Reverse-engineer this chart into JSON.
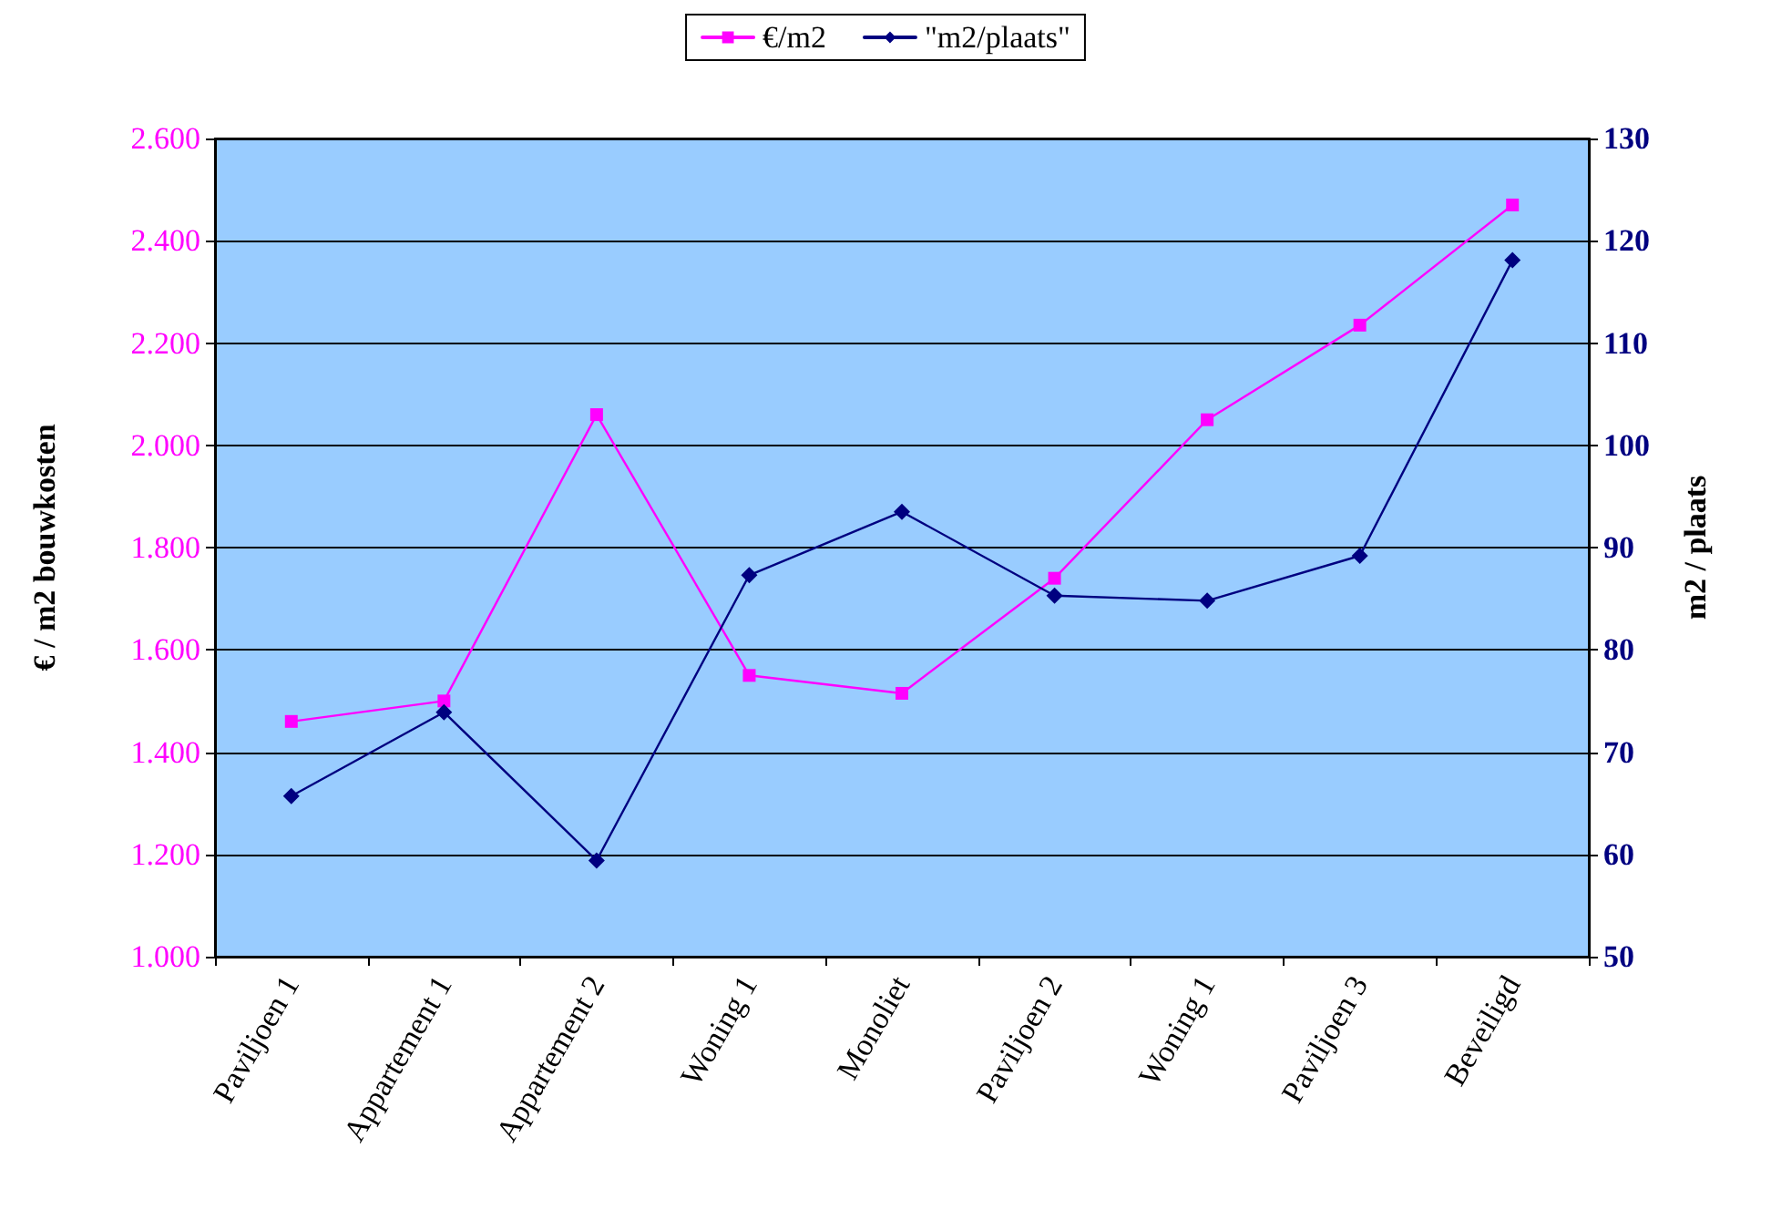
{
  "chart_data": {
    "type": "line",
    "ylabel": "€ / m2 bouwkosten",
    "y2label": "m2 / plaats",
    "categories": [
      "Paviljoen 1",
      "Appartement 1",
      "Appartement 2",
      "Woning 1",
      "Monoliet",
      "Paviljoen 2",
      "Woning 1",
      "Paviljoen 3",
      "Beveiligd"
    ],
    "series": [
      {
        "name": "€/m2",
        "color": "#ff00ff",
        "marker": "square",
        "values": [
          1460,
          1500,
          2060,
          1550,
          1515,
          1740,
          2050,
          2235,
          2470
        ]
      },
      {
        "name": "\"m2/plaats\"",
        "color": "#000080",
        "marker": "diamond",
        "axis": "y2",
        "values": [
          65.7,
          73.9,
          59.4,
          87.3,
          93.5,
          85.3,
          84.8,
          89.2,
          118.1
        ]
      }
    ],
    "ylim": [
      1000,
      2600
    ],
    "yticks": [
      {
        "value": 1000,
        "label": "1.000"
      },
      {
        "value": 1200,
        "label": "1.200"
      },
      {
        "value": 1400,
        "label": "1.400"
      },
      {
        "value": 1600,
        "label": "1.600"
      },
      {
        "value": 1800,
        "label": "1.800"
      },
      {
        "value": 2000,
        "label": "2.000"
      },
      {
        "value": 2200,
        "label": "2.200"
      },
      {
        "value": 2400,
        "label": "2.400"
      },
      {
        "value": 2600,
        "label": "2.600"
      }
    ],
    "y2lim": [
      50,
      130
    ],
    "y2ticks": [
      50,
      60,
      70,
      80,
      90,
      100,
      110,
      120,
      130
    ],
    "grid": "y",
    "legend": "top",
    "line_style": "solid"
  }
}
